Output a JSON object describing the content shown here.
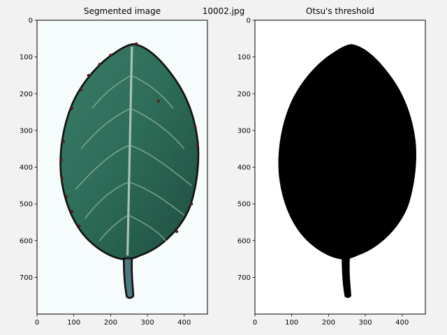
{
  "figure": {
    "suptitle": "10002.jpg",
    "background": "#f2f2f2"
  },
  "panels": [
    {
      "title": "Segmented image",
      "kind": "image",
      "x_ticks": [
        0,
        100,
        200,
        300,
        400
      ],
      "y_ticks": [
        0,
        100,
        200,
        300,
        400,
        500,
        600,
        700
      ],
      "xlim": [
        0,
        463
      ],
      "ylim": [
        800,
        0
      ],
      "colors": {
        "leaf": "#2c6b57",
        "leaf_dark": "#1f4d40",
        "vein": "#9fb8ad",
        "outline": "#111111",
        "background": "#f6fbfc"
      }
    },
    {
      "title": "Otsu's threshold",
      "kind": "binary-mask",
      "x_ticks": [
        0,
        100,
        200,
        300,
        400
      ],
      "y_ticks": [
        0,
        100,
        200,
        300,
        400,
        500,
        600,
        700
      ],
      "xlim": [
        0,
        463
      ],
      "ylim": [
        800,
        0
      ],
      "colors": {
        "foreground": "#000000",
        "background": "#ffffff"
      }
    }
  ]
}
